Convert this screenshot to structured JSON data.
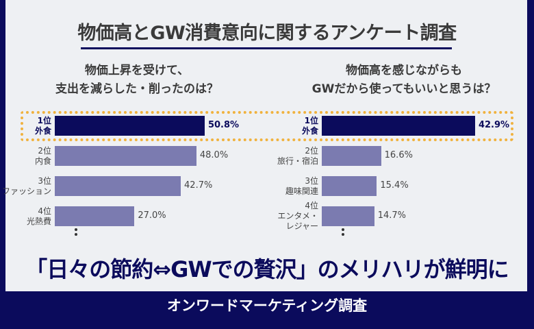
{
  "title": "物価高とGW消費意向に関するアンケート調査",
  "headline": "「日々の節約⇔GWでの贅沢」のメリハリが鮮明に",
  "footer": "オンワードマーケティング調査",
  "colors": {
    "navy": "#0b0b5c",
    "bar": "#7b7bb0",
    "highlight": "#f0b23e",
    "background": "#eef0f3"
  },
  "chart_data": [
    {
      "type": "bar",
      "orientation": "horizontal",
      "title_lines": [
        "物価上昇を受けて、",
        "支出を減らした・削ったのは？"
      ],
      "categories": [
        [
          "1位",
          "外食"
        ],
        [
          "2位",
          "内食"
        ],
        [
          "3位",
          "ファッション"
        ],
        [
          "4位",
          "光熱費"
        ]
      ],
      "values": [
        50.8,
        48.0,
        42.7,
        27.0
      ],
      "value_labels": [
        "50.8%",
        "48.0%",
        "42.7%",
        "27.0%"
      ],
      "continues": true
    },
    {
      "type": "bar",
      "orientation": "horizontal",
      "title_lines": [
        "物価高を感じながらも",
        "GWだから使ってもいいと思うは？"
      ],
      "categories": [
        [
          "1位",
          "外食"
        ],
        [
          "2位",
          "旅行・宿泊"
        ],
        [
          "3位",
          "趣味関連"
        ],
        [
          "4位",
          "エンタメ・",
          "レジャー"
        ]
      ],
      "values": [
        42.9,
        16.6,
        15.4,
        14.7
      ],
      "value_labels": [
        "42.9%",
        "16.6%",
        "15.4%",
        "14.7%"
      ],
      "continues": true
    }
  ]
}
